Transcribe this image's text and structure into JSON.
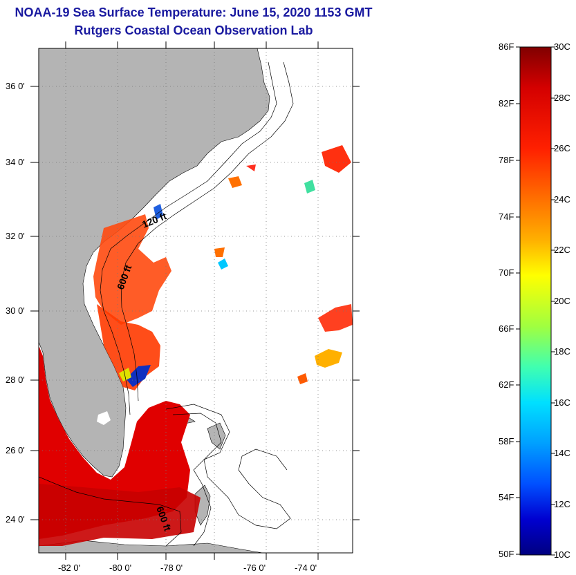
{
  "title": "NOAA-19 Sea Surface Temperature:  June 15, 2020 1153 GMT",
  "subtitle": "Rutgers Coastal Ocean Observation Lab",
  "map": {
    "lat_labels": [
      "36 0'",
      "34 0'",
      "32 0'",
      "30 0'",
      "28 0'",
      "26 0'",
      "24 0'"
    ],
    "lon_labels": [
      "-82 0'",
      "-80 0'",
      "-78 0'",
      "-76 0'",
      "-74 0'"
    ],
    "contour_labels": [
      "120 ft",
      "600 ft",
      "600 ft"
    ],
    "colors": {
      "land": "#b4b4b4",
      "frame": "#000000",
      "no_data": "#ffffff"
    }
  },
  "colorbar": {
    "fahrenheit_labels": [
      "86F",
      "82F",
      "78F",
      "74F",
      "70F",
      "66F",
      "62F",
      "58F",
      "54F",
      "50F"
    ],
    "celsius_labels": [
      "30C",
      "28C",
      "26C",
      "24C",
      "22C",
      "20C",
      "18C",
      "16C",
      "14C",
      "12C",
      "10C"
    ],
    "range_c": [
      10,
      30
    ],
    "colors": [
      "#800000",
      "#d40000",
      "#ff2000",
      "#ff7000",
      "#ffb000",
      "#ffff00",
      "#a0ff40",
      "#40ffb0",
      "#00e0ff",
      "#00a0ff",
      "#0050ff",
      "#0000d0",
      "#000080"
    ]
  }
}
